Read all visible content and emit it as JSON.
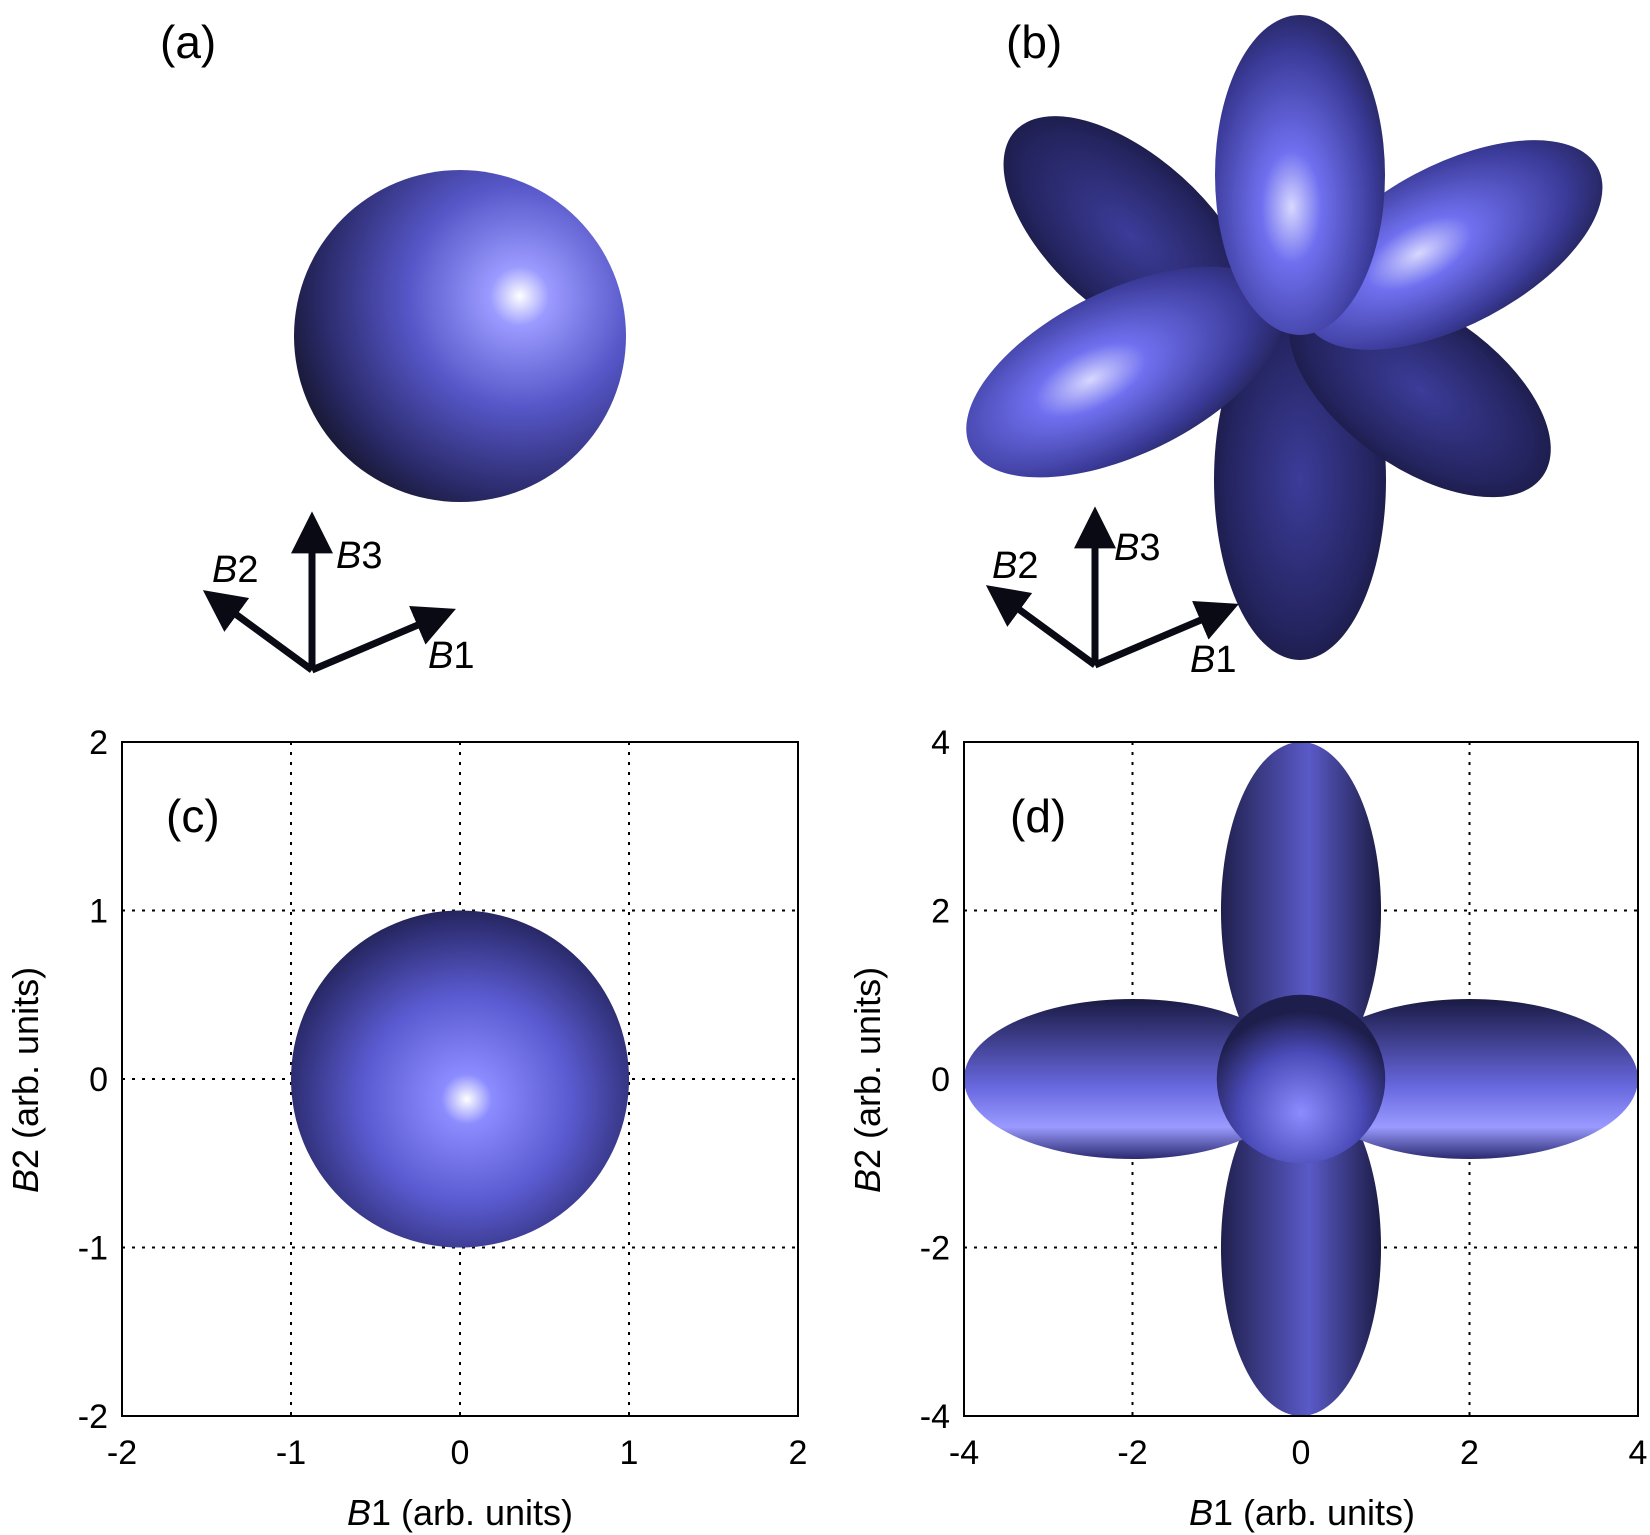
{
  "panels": {
    "a": {
      "label": "(a)"
    },
    "b": {
      "label": "(b)"
    },
    "c": {
      "label": "(c)"
    },
    "d": {
      "label": "(d)"
    }
  },
  "triad": {
    "b1_var": "B",
    "b1_num": "1",
    "b2_var": "B",
    "b2_num": "2",
    "b3_var": "B",
    "b3_num": "3"
  },
  "colors": {
    "surface_light": "#7878ff",
    "surface_mid": "#4a4ab8",
    "surface_dark": "#141428",
    "grid": "#000000"
  },
  "chart_data": [
    {
      "panel": "a",
      "type": "surface-3d",
      "shape": "sphere",
      "radius": 1
    },
    {
      "panel": "b",
      "type": "surface-3d",
      "shape": "four-lobe",
      "lobe_extent": 4,
      "core_radius": 1
    },
    {
      "panel": "c",
      "type": "projection-2d",
      "shape": "sphere",
      "radius": 1,
      "xlabel_var": "B",
      "xlabel_num": "1",
      "xlabel_unit": " (arb. units)",
      "ylabel_var": "B",
      "ylabel_num": "2",
      "ylabel_unit": " (arb. units)",
      "xlim": [
        -2,
        2
      ],
      "ylim": [
        -2,
        2
      ],
      "xticks": [
        "-2",
        "-1",
        "0",
        "1",
        "2"
      ],
      "yticks": [
        "-2",
        "-1",
        "0",
        "1",
        "2"
      ],
      "grid": true
    },
    {
      "panel": "d",
      "type": "projection-2d",
      "shape": "four-lobe",
      "lobe_extent": 4,
      "lobe_half_width": 0.95,
      "core_radius": 1,
      "xlabel_var": "B",
      "xlabel_num": "1",
      "xlabel_unit": " (arb. units)",
      "ylabel_var": "B",
      "ylabel_num": "2",
      "ylabel_unit": " (arb. units)",
      "xlim": [
        -4,
        4
      ],
      "ylim": [
        -4,
        4
      ],
      "xticks": [
        "-4",
        "-2",
        "0",
        "2",
        "4"
      ],
      "yticks": [
        "-4",
        "-2",
        "0",
        "2",
        "4"
      ],
      "grid": true
    }
  ]
}
